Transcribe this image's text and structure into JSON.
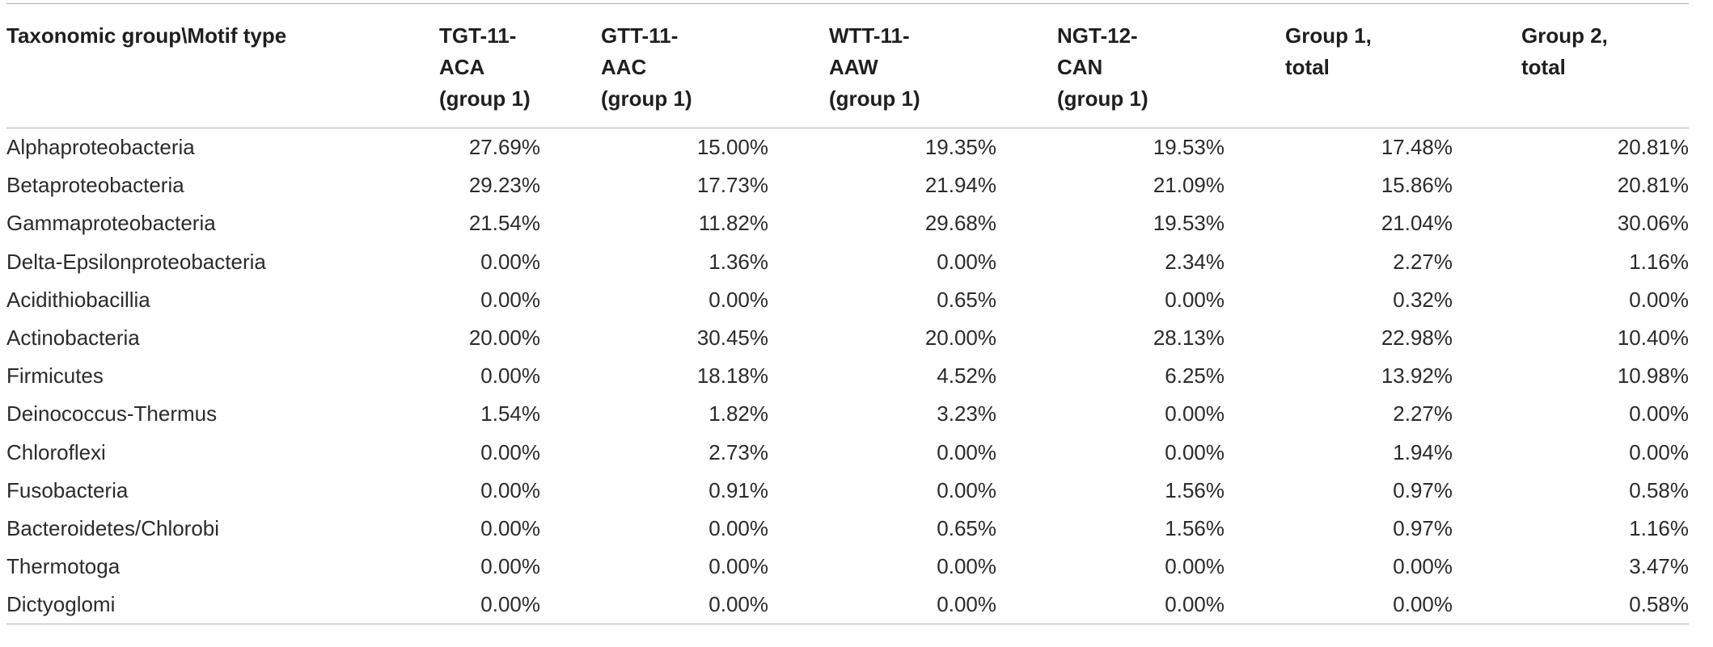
{
  "table": {
    "header_first": "Taxonomic group\\Motif type",
    "columns": [
      [
        "TGT-11-",
        "ACA",
        "(group 1)"
      ],
      [
        "GTT-11-",
        "AAC",
        "(group 1)"
      ],
      [
        "WTT-11-",
        "AAW",
        "(group 1)"
      ],
      [
        "NGT-12-",
        "CAN",
        "(group 1)"
      ],
      [
        "Group 1,",
        "total"
      ],
      [
        "Group 2,",
        "total"
      ]
    ],
    "rows": [
      {
        "label": "Alphaproteobacteria",
        "values": [
          "27.69%",
          "15.00%",
          "19.35%",
          "19.53%",
          "17.48%",
          "20.81%"
        ]
      },
      {
        "label": "Betaproteobacteria",
        "values": [
          "29.23%",
          "17.73%",
          "21.94%",
          "21.09%",
          "15.86%",
          "20.81%"
        ]
      },
      {
        "label": "Gammaproteobacteria",
        "values": [
          "21.54%",
          "11.82%",
          "29.68%",
          "19.53%",
          "21.04%",
          "30.06%"
        ]
      },
      {
        "label": "Delta-Epsilonproteobacteria",
        "values": [
          "0.00%",
          "1.36%",
          "0.00%",
          "2.34%",
          "2.27%",
          "1.16%"
        ]
      },
      {
        "label": "Acidithiobacillia",
        "values": [
          "0.00%",
          "0.00%",
          "0.65%",
          "0.00%",
          "0.32%",
          "0.00%"
        ]
      },
      {
        "label": "Actinobacteria",
        "values": [
          "20.00%",
          "30.45%",
          "20.00%",
          "28.13%",
          "22.98%",
          "10.40%"
        ]
      },
      {
        "label": "Firmicutes",
        "values": [
          "0.00%",
          "18.18%",
          "4.52%",
          "6.25%",
          "13.92%",
          "10.98%"
        ]
      },
      {
        "label": "Deinococcus-Thermus",
        "values": [
          "1.54%",
          "1.82%",
          "3.23%",
          "0.00%",
          "2.27%",
          "0.00%"
        ]
      },
      {
        "label": "Chloroflexi",
        "values": [
          "0.00%",
          "2.73%",
          "0.00%",
          "0.00%",
          "1.94%",
          "0.00%"
        ]
      },
      {
        "label": "Fusobacteria",
        "values": [
          "0.00%",
          "0.91%",
          "0.00%",
          "1.56%",
          "0.97%",
          "0.58%"
        ]
      },
      {
        "label": "Bacteroidetes/Chlorobi",
        "values": [
          "0.00%",
          "0.00%",
          "0.65%",
          "1.56%",
          "0.97%",
          "1.16%"
        ]
      },
      {
        "label": "Thermotoga",
        "values": [
          "0.00%",
          "0.00%",
          "0.00%",
          "0.00%",
          "0.00%",
          "3.47%"
        ]
      },
      {
        "label": "Dictyoglomi",
        "values": [
          "0.00%",
          "0.00%",
          "0.00%",
          "0.00%",
          "0.00%",
          "0.58%"
        ]
      }
    ]
  }
}
